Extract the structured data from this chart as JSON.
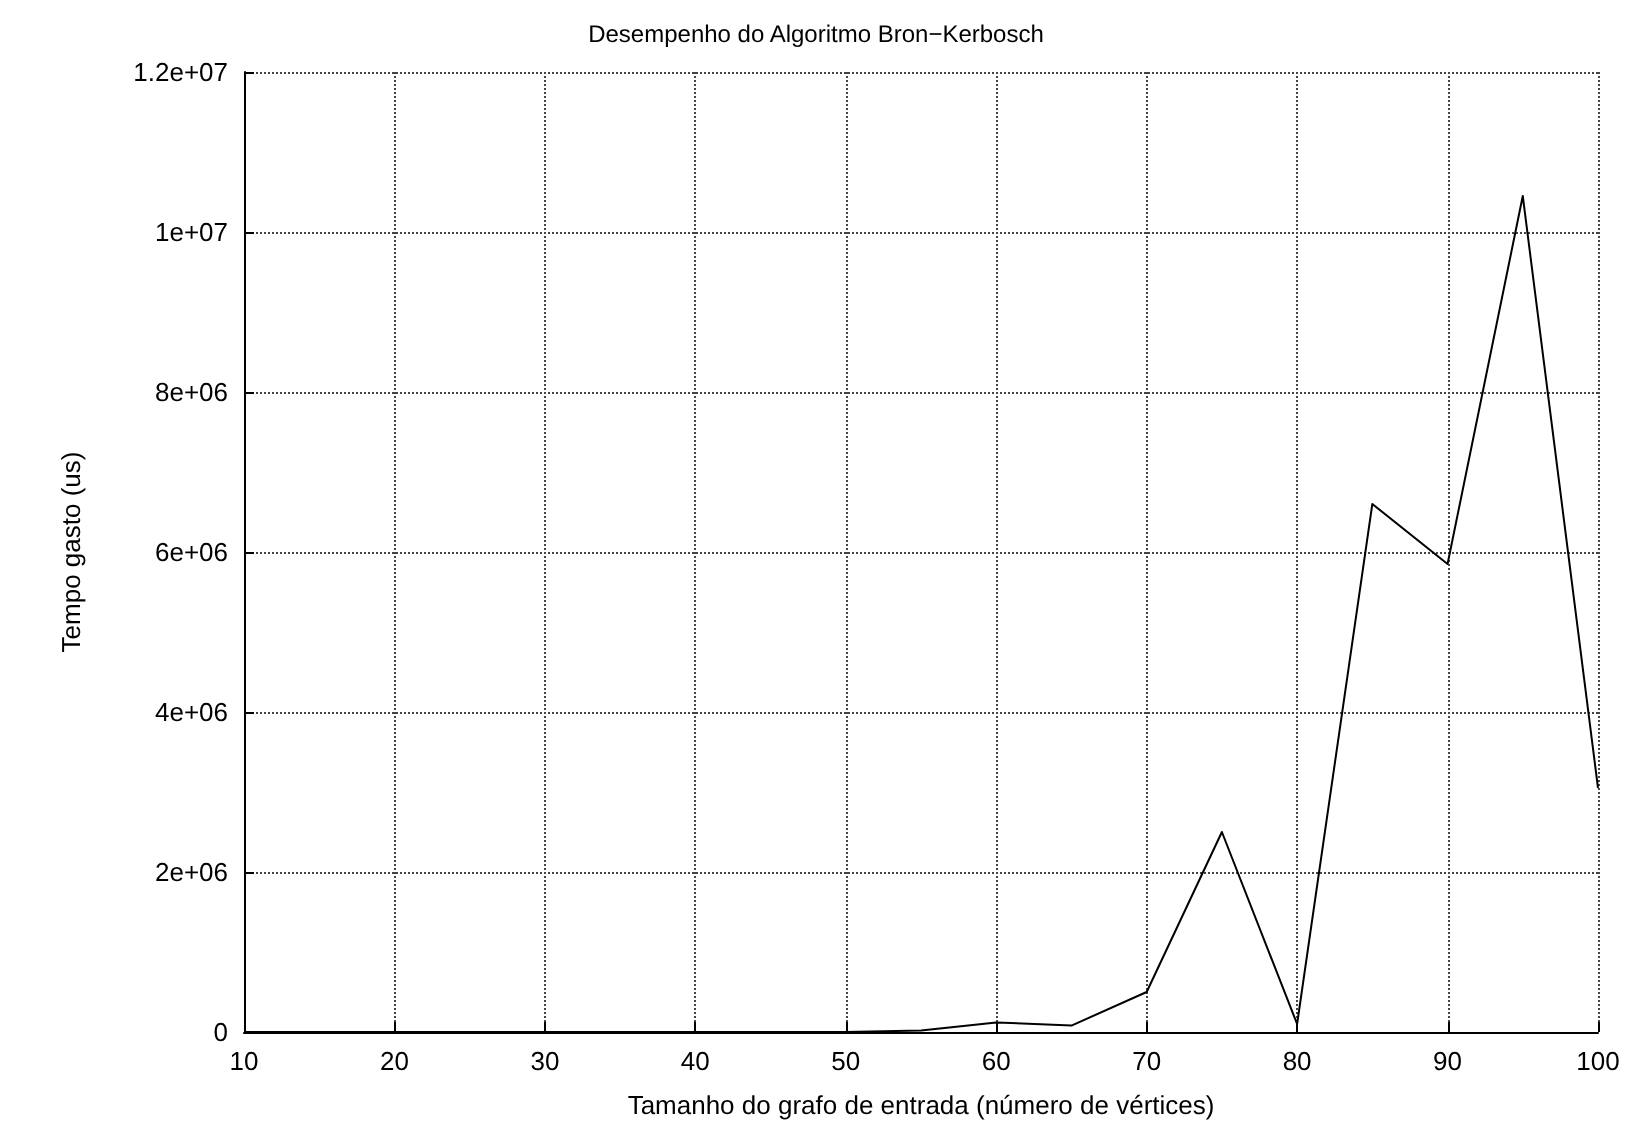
{
  "chart_data": {
    "type": "line",
    "title": "Desempenho do Algoritmo Bron−Kerbosch",
    "xlabel": "Tamanho do grafo de entrada (número de vértices)",
    "ylabel": "Tempo gasto (us)",
    "x": [
      10,
      15,
      20,
      25,
      30,
      35,
      40,
      45,
      50,
      55,
      60,
      65,
      70,
      75,
      80,
      85,
      90,
      95,
      100
    ],
    "series": [
      {
        "color": "#000000",
        "values": [
          0,
          0,
          0,
          0,
          0,
          0,
          0,
          0,
          0,
          20000,
          120000,
          80000,
          500000,
          2500000,
          100000,
          6600000,
          5850000,
          10450000,
          3050000
        ]
      }
    ],
    "xlim": [
      10,
      100
    ],
    "xticks": [
      10,
      20,
      30,
      40,
      50,
      60,
      70,
      80,
      90,
      100
    ],
    "ylim": [
      0,
      12000000
    ],
    "yticks": [
      {
        "value": 0,
        "label": "0"
      },
      {
        "value": 2000000,
        "label": "2e+06"
      },
      {
        "value": 4000000,
        "label": "4e+06"
      },
      {
        "value": 6000000,
        "label": "6e+06"
      },
      {
        "value": 8000000,
        "label": "8e+06"
      },
      {
        "value": 10000000,
        "label": "1e+07"
      },
      {
        "value": 12000000,
        "label": "1.2e+07"
      }
    ],
    "grid": true,
    "marker": "none",
    "line_style": "solid"
  }
}
